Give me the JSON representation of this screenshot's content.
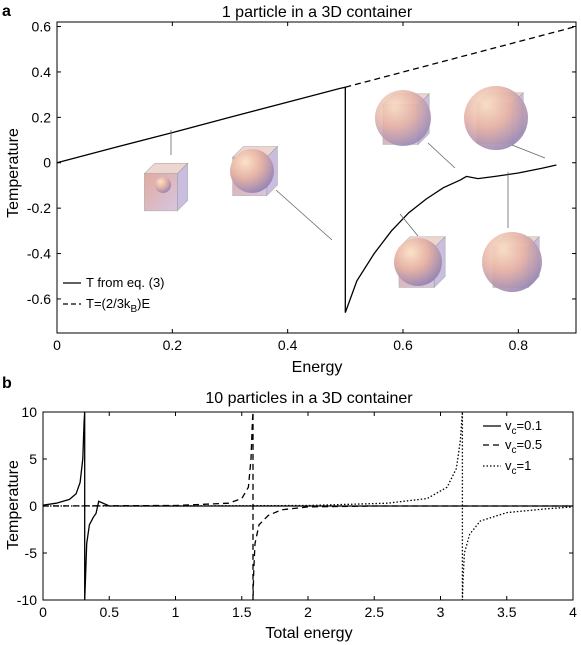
{
  "chart_data": [
    {
      "panel": "a",
      "type": "line",
      "title": "1 particle in a 3D container",
      "xlabel": "Energy",
      "ylabel": "Temperature",
      "xlim": [
        0,
        0.9
      ],
      "ylim": [
        -0.75,
        0.62
      ],
      "xticks": [
        0,
        0.2,
        0.4,
        0.6,
        0.8
      ],
      "xtick_labels": [
        "0",
        "0.2",
        "0.4",
        "0.6",
        "0.8"
      ],
      "yticks": [
        -0.6,
        -0.4,
        -0.2,
        0,
        0.2,
        0.4,
        0.6
      ],
      "ytick_labels": [
        "-0.6",
        "-0.4",
        "-0.2",
        "0",
        "0.2",
        "0.4",
        "0.6"
      ],
      "legend_position": "bottom-left",
      "series": [
        {
          "name": "T from eq. (3)",
          "style": "solid",
          "x": [
            0,
            0.1,
            0.2,
            0.3,
            0.4,
            0.49,
            0.5,
            0.5,
            0.52,
            0.55,
            0.58,
            0.61,
            0.64,
            0.67,
            0.7,
            0.71,
            0.73,
            0.76,
            0.8,
            0.84,
            0.866
          ],
          "y": [
            0,
            0.067,
            0.133,
            0.2,
            0.267,
            0.327,
            0.333,
            -0.66,
            -0.52,
            -0.4,
            -0.3,
            -0.22,
            -0.16,
            -0.11,
            -0.075,
            -0.06,
            -0.07,
            -0.06,
            -0.045,
            -0.025,
            -0.01
          ]
        },
        {
          "name": "T=(2/3kB)E",
          "style": "dashed",
          "x": [
            0.5,
            0.9
          ],
          "y": [
            0.333,
            0.6
          ]
        }
      ]
    },
    {
      "panel": "b",
      "type": "line",
      "title": "10 particles in a 3D container",
      "xlabel": "Total energy",
      "ylabel": "Temperature",
      "xlim": [
        0,
        4
      ],
      "ylim": [
        -10,
        10
      ],
      "xticks": [
        0,
        0.5,
        1,
        1.5,
        2,
        2.5,
        3,
        3.5,
        4
      ],
      "xtick_labels": [
        "0",
        "0.5",
        "1",
        "1.5",
        "2",
        "2.5",
        "3",
        "3.5",
        "4"
      ],
      "yticks": [
        -10,
        -5,
        0,
        5,
        10
      ],
      "ytick_labels": [
        "-10",
        "-5",
        "0",
        "5",
        "10"
      ],
      "legend_position": "top-right",
      "series": [
        {
          "name": "vc=0.1",
          "style": "solid",
          "x": [
            0,
            0.1,
            0.2,
            0.25,
            0.28,
            0.3,
            0.31,
            0.315,
            0.315,
            0.32,
            0.33,
            0.35,
            0.38,
            0.4,
            0.42,
            0.5,
            1,
            2,
            3,
            4
          ],
          "y": [
            0.1,
            0.3,
            0.7,
            1.3,
            2.5,
            5,
            9,
            10,
            -10,
            -8,
            -4,
            -2,
            -1.2,
            -0.8,
            0.5,
            0,
            0,
            0,
            0,
            0
          ]
        },
        {
          "name": "vc=0.5",
          "style": "dashed",
          "x": [
            0,
            1,
            1.4,
            1.5,
            1.55,
            1.57,
            1.58,
            1.585,
            1.585,
            1.59,
            1.6,
            1.63,
            1.7,
            1.8,
            2,
            2.5,
            3,
            4
          ],
          "y": [
            0,
            0.05,
            0.3,
            0.8,
            2,
            5,
            9,
            10,
            -10,
            -7,
            -4,
            -2,
            -1,
            -0.4,
            -0.1,
            0,
            0,
            0
          ]
        },
        {
          "name": "vc=1",
          "style": "dotted",
          "x": [
            0,
            1,
            2,
            2.6,
            2.9,
            3.05,
            3.12,
            3.15,
            3.16,
            3.165,
            3.165,
            3.17,
            3.18,
            3.22,
            3.3,
            3.5,
            3.8,
            4
          ],
          "y": [
            0,
            0,
            0.05,
            0.3,
            0.8,
            2,
            4,
            7,
            9,
            10,
            -10,
            -8,
            -5,
            -3,
            -1.6,
            -0.7,
            -0.3,
            -0.1
          ]
        }
      ]
    }
  ],
  "icons": [
    "sphere-in-cube-icon"
  ]
}
